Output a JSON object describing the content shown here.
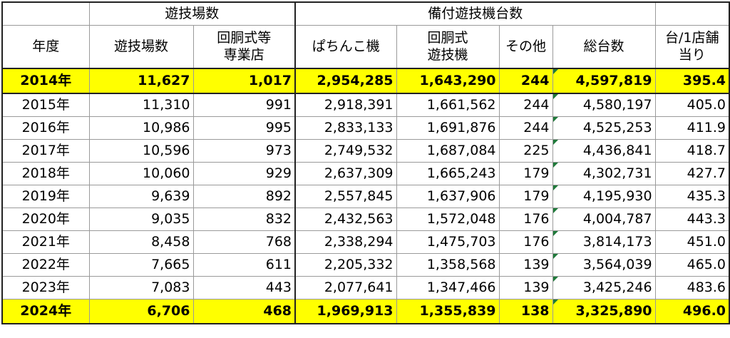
{
  "header": {
    "group_venues": "遊技場数",
    "group_machines": "備付遊技機台数",
    "col_year": "年度",
    "col_venues": "遊技場数",
    "col_slot_only": "回胴式等\n専業店",
    "col_pachinko": "ぱちんこ機",
    "col_slot_machines": "回胴式\n遊技機",
    "col_other": "その他",
    "col_total": "総台数",
    "col_per_store": "台/1店舗\n当り"
  },
  "rows": [
    {
      "year": "2014年",
      "venues": "11,627",
      "slot_only": "1,017",
      "pachinko": "2,954,285",
      "slot_machines": "1,643,290",
      "other": "244",
      "total": "4,597,819",
      "per_store": "395.4"
    },
    {
      "year": "2015年",
      "venues": "11,310",
      "slot_only": "991",
      "pachinko": "2,918,391",
      "slot_machines": "1,661,562",
      "other": "244",
      "total": "4,580,197",
      "per_store": "405.0"
    },
    {
      "year": "2016年",
      "venues": "10,986",
      "slot_only": "995",
      "pachinko": "2,833,133",
      "slot_machines": "1,691,876",
      "other": "244",
      "total": "4,525,253",
      "per_store": "411.9"
    },
    {
      "year": "2017年",
      "venues": "10,596",
      "slot_only": "973",
      "pachinko": "2,749,532",
      "slot_machines": "1,687,084",
      "other": "225",
      "total": "4,436,841",
      "per_store": "418.7"
    },
    {
      "year": "2018年",
      "venues": "10,060",
      "slot_only": "929",
      "pachinko": "2,637,309",
      "slot_machines": "1,665,243",
      "other": "179",
      "total": "4,302,731",
      "per_store": "427.7"
    },
    {
      "year": "2019年",
      "venues": "9,639",
      "slot_only": "892",
      "pachinko": "2,557,845",
      "slot_machines": "1,637,906",
      "other": "179",
      "total": "4,195,930",
      "per_store": "435.3"
    },
    {
      "year": "2020年",
      "venues": "9,035",
      "slot_only": "832",
      "pachinko": "2,432,563",
      "slot_machines": "1,572,048",
      "other": "176",
      "total": "4,004,787",
      "per_store": "443.3"
    },
    {
      "year": "2021年",
      "venues": "8,458",
      "slot_only": "768",
      "pachinko": "2,338,294",
      "slot_machines": "1,475,703",
      "other": "176",
      "total": "3,814,173",
      "per_store": "451.0"
    },
    {
      "year": "2022年",
      "venues": "7,665",
      "slot_only": "611",
      "pachinko": "2,205,332",
      "slot_machines": "1,358,568",
      "other": "139",
      "total": "3,564,039",
      "per_store": "465.0"
    },
    {
      "year": "2023年",
      "venues": "7,083",
      "slot_only": "443",
      "pachinko": "2,077,641",
      "slot_machines": "1,347,466",
      "other": "139",
      "total": "3,425,246",
      "per_store": "483.6"
    },
    {
      "year": "2024年",
      "venues": "6,706",
      "slot_only": "468",
      "pachinko": "1,969,913",
      "slot_machines": "1,355,839",
      "other": "138",
      "total": "3,325,890",
      "per_store": "496.0"
    }
  ],
  "colors": {
    "highlight": "#ffff00",
    "comment_marker": "#1f7a3a"
  }
}
